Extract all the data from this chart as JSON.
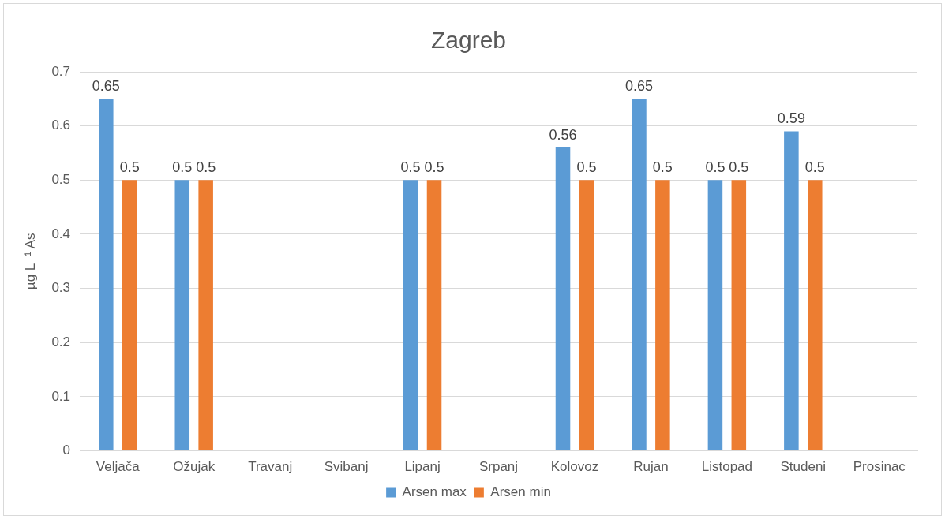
{
  "chart_data": {
    "type": "bar",
    "title": "Zagreb",
    "ylabel": "µg L⁻¹ As",
    "categories": [
      "Veljača",
      "Ožujak",
      "Travanj",
      "Svibanj",
      "Lipanj",
      "Srpanj",
      "Kolovoz",
      "Rujan",
      "Listopad",
      "Studeni",
      "Prosinac"
    ],
    "series": [
      {
        "name": "Arsen max",
        "color": "#5b9bd5",
        "values": [
          0.65,
          0.5,
          null,
          null,
          0.5,
          null,
          0.56,
          0.65,
          0.5,
          0.59,
          null
        ]
      },
      {
        "name": "Arsen min",
        "color": "#ed7d31",
        "values": [
          0.5,
          0.5,
          null,
          null,
          0.5,
          null,
          0.5,
          0.5,
          0.5,
          0.5,
          null
        ]
      }
    ],
    "ylim": [
      0,
      0.7
    ],
    "yticks": [
      0,
      0.1,
      0.2,
      0.3,
      0.4,
      0.5,
      0.6,
      0.7
    ],
    "grid": "y",
    "legend": "bottom",
    "data_labels": true
  }
}
